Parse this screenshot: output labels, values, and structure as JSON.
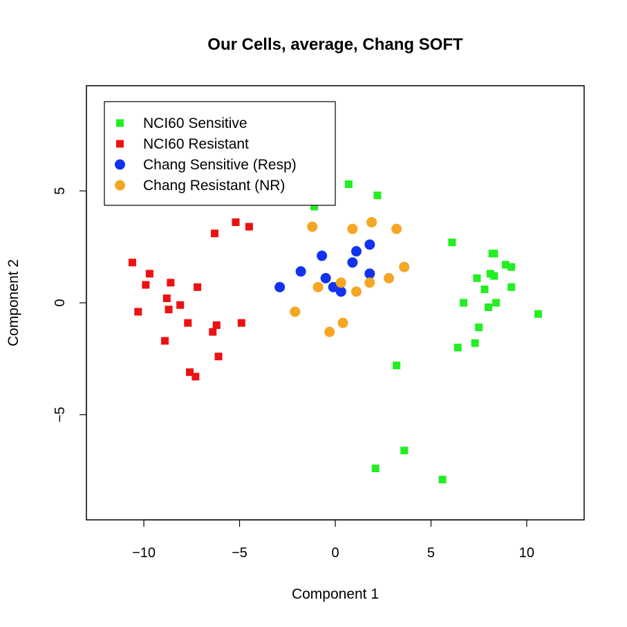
{
  "chart_data": {
    "type": "scatter",
    "title": "Our Cells, average, Chang SOFT",
    "xlabel": "Component 1",
    "ylabel": "Component 2",
    "xlim": [
      -13,
      13
    ],
    "ylim": [
      -9.7,
      9.7
    ],
    "xticks": [
      -10,
      -5,
      0,
      5,
      10
    ],
    "yticks": [
      -5,
      0,
      5
    ],
    "xtick_labels": [
      "−10",
      "−5",
      "0",
      "5",
      "10"
    ],
    "ytick_labels": [
      "−5",
      "0",
      "5"
    ],
    "grid": false,
    "legend_position": "top-left",
    "series": [
      {
        "name": "NCI60 Sensitive",
        "marker": "square",
        "color": "#22ee22",
        "points": [
          [
            -1.1,
            4.3
          ],
          [
            0.7,
            5.3
          ],
          [
            2.2,
            4.8
          ],
          [
            6.1,
            2.7
          ],
          [
            8.2,
            2.2
          ],
          [
            8.3,
            2.2
          ],
          [
            8.1,
            1.3
          ],
          [
            8.3,
            1.2
          ],
          [
            7.4,
            1.1
          ],
          [
            7.8,
            0.6
          ],
          [
            8.9,
            1.7
          ],
          [
            9.2,
            1.6
          ],
          [
            9.2,
            0.7
          ],
          [
            8.4,
            0.0
          ],
          [
            6.7,
            0.0
          ],
          [
            8.0,
            -0.2
          ],
          [
            10.6,
            -0.5
          ],
          [
            7.5,
            -1.1
          ],
          [
            7.3,
            -1.8
          ],
          [
            6.4,
            -2.0
          ],
          [
            3.2,
            -2.8
          ],
          [
            3.6,
            -6.6
          ],
          [
            2.1,
            -7.4
          ],
          [
            5.6,
            -7.9
          ]
        ]
      },
      {
        "name": "NCI60 Resistant",
        "marker": "square",
        "color": "#ee1111",
        "points": [
          [
            -10.6,
            1.8
          ],
          [
            -9.7,
            1.3
          ],
          [
            -9.9,
            0.8
          ],
          [
            -8.6,
            0.9
          ],
          [
            -7.2,
            0.7
          ],
          [
            -8.8,
            0.2
          ],
          [
            -8.1,
            -0.1
          ],
          [
            -8.7,
            -0.3
          ],
          [
            -10.3,
            -0.4
          ],
          [
            -7.7,
            -0.9
          ],
          [
            -6.2,
            -1.0
          ],
          [
            -4.9,
            -0.9
          ],
          [
            -6.4,
            -1.3
          ],
          [
            -8.9,
            -1.7
          ],
          [
            -6.1,
            -2.4
          ],
          [
            -7.6,
            -3.1
          ],
          [
            -7.3,
            -3.3
          ],
          [
            -6.3,
            3.1
          ],
          [
            -5.2,
            3.6
          ],
          [
            -4.5,
            3.4
          ]
        ]
      },
      {
        "name": "Chang Sensitive (Resp)",
        "marker": "circle",
        "color": "#1133ee",
        "points": [
          [
            -2.9,
            0.7
          ],
          [
            -1.8,
            1.4
          ],
          [
            -0.7,
            2.1
          ],
          [
            -0.5,
            1.1
          ],
          [
            -0.1,
            0.7
          ],
          [
            0.3,
            0.5
          ],
          [
            0.9,
            1.8
          ],
          [
            1.1,
            2.3
          ],
          [
            1.8,
            2.6
          ],
          [
            1.8,
            1.3
          ]
        ]
      },
      {
        "name": "Chang Resistant (NR)",
        "marker": "circle",
        "color": "#f5a623",
        "points": [
          [
            -1.2,
            3.4
          ],
          [
            0.9,
            3.3
          ],
          [
            1.9,
            3.6
          ],
          [
            3.2,
            3.3
          ],
          [
            3.6,
            1.6
          ],
          [
            2.8,
            1.1
          ],
          [
            1.8,
            0.9
          ],
          [
            1.1,
            0.5
          ],
          [
            -0.9,
            0.7
          ],
          [
            0.3,
            0.9
          ],
          [
            -2.1,
            -0.4
          ],
          [
            0.4,
            -0.9
          ],
          [
            -0.3,
            -1.3
          ]
        ]
      }
    ]
  }
}
